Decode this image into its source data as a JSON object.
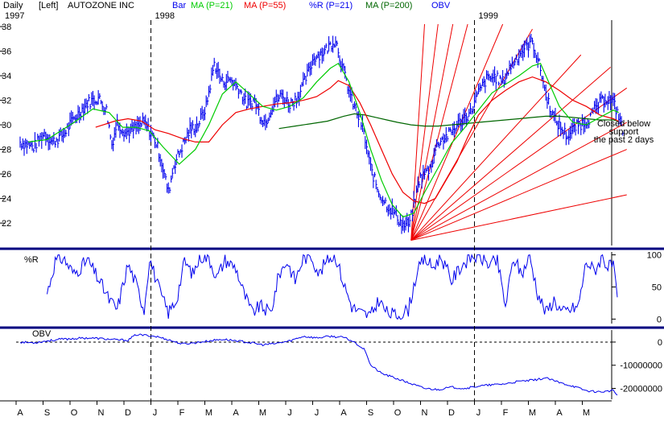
{
  "header": {
    "period": "Daily",
    "scale": "[Left]",
    "symbol": "AUTOZONE INC",
    "legend": [
      {
        "label": "Bar",
        "color": "#0000ee"
      },
      {
        "label": "MA (P=21)",
        "color": "#00cc00"
      },
      {
        "label": "MA (P=55)",
        "color": "#ee0000"
      },
      {
        "label": "%R (P=21)",
        "color": "#0000ee"
      },
      {
        "label": "MA (P=200)",
        "color": "#006600"
      },
      {
        "label": "OBV",
        "color": "#0000ee"
      }
    ]
  },
  "year_labels": [
    {
      "label": "1997",
      "month_index": 0
    },
    {
      "label": "1998",
      "month_index": 5
    },
    {
      "label": "1999",
      "month_index": 17
    }
  ],
  "annotation": {
    "lines": [
      "Closed below",
      "support",
      "the past 2 days"
    ]
  },
  "colors": {
    "bars": "#0000ee",
    "ma21": "#00cc00",
    "ma55": "#ee0000",
    "ma200": "#006600",
    "fan": "#ee0000",
    "panel_border": "#000080",
    "text": "#000000"
  },
  "chart_data": [
    {
      "panel": "price",
      "type": "bar",
      "y_ticks": [
        22,
        24,
        26,
        28,
        30,
        32,
        34,
        36,
        38
      ],
      "ylim": [
        20.5,
        38.2
      ],
      "x_month_labels": [
        "A",
        "S",
        "O",
        "N",
        "D",
        "J",
        "F",
        "M",
        "A",
        "M",
        "J",
        "J",
        "A",
        "S",
        "O",
        "N",
        "D",
        "J",
        "F",
        "M",
        "A",
        "M"
      ],
      "price_path": [
        [
          0,
          28.6
        ],
        [
          0.5,
          28.2
        ],
        [
          0.9,
          29.3
        ],
        [
          1.2,
          28.6
        ],
        [
          1.6,
          29.2
        ],
        [
          2.0,
          30.5
        ],
        [
          2.5,
          31.8
        ],
        [
          2.9,
          32.2
        ],
        [
          3.2,
          31.2
        ],
        [
          3.4,
          28.4
        ],
        [
          3.6,
          30.2
        ],
        [
          3.9,
          29.4
        ],
        [
          4.2,
          29.6
        ],
        [
          4.6,
          30.2
        ],
        [
          5.0,
          28.8
        ],
        [
          5.2,
          27.4
        ],
        [
          5.5,
          24.5
        ],
        [
          5.7,
          26.7
        ],
        [
          6.0,
          28.2
        ],
        [
          6.3,
          29.6
        ],
        [
          6.6,
          30.0
        ],
        [
          6.9,
          31.5
        ],
        [
          7.2,
          35.0
        ],
        [
          7.5,
          33.5
        ],
        [
          7.8,
          33.7
        ],
        [
          8.1,
          33.0
        ],
        [
          8.4,
          31.7
        ],
        [
          8.7,
          32.0
        ],
        [
          8.9,
          30.8
        ],
        [
          9.1,
          30.2
        ],
        [
          9.4,
          31.8
        ],
        [
          9.7,
          32.4
        ],
        [
          10.0,
          31.7
        ],
        [
          10.3,
          32.3
        ],
        [
          10.6,
          33.8
        ],
        [
          10.9,
          35.5
        ],
        [
          11.3,
          36.0
        ],
        [
          11.7,
          37.0
        ],
        [
          11.95,
          34.7
        ],
        [
          12.3,
          32.0
        ],
        [
          12.7,
          29.8
        ],
        [
          13.0,
          26.5
        ],
        [
          13.3,
          24.5
        ],
        [
          13.6,
          23.5
        ],
        [
          13.9,
          22.8
        ],
        [
          14.2,
          21.8
        ],
        [
          14.45,
          22.0
        ],
        [
          14.8,
          25.5
        ],
        [
          15.2,
          26.5
        ],
        [
          15.5,
          28.6
        ],
        [
          15.9,
          29.2
        ],
        [
          16.3,
          30.2
        ],
        [
          16.7,
          31.0
        ],
        [
          17.0,
          32.6
        ],
        [
          17.3,
          33.7
        ],
        [
          17.6,
          33.9
        ],
        [
          17.9,
          33.5
        ],
        [
          18.2,
          34.8
        ],
        [
          18.6,
          36.0
        ],
        [
          19.0,
          36.8
        ],
        [
          19.3,
          34.5
        ],
        [
          19.5,
          32.5
        ],
        [
          19.8,
          30.5
        ],
        [
          20.1,
          29.6
        ],
        [
          20.3,
          29.1
        ],
        [
          20.6,
          29.8
        ],
        [
          20.9,
          30.2
        ],
        [
          21.1,
          30.5
        ],
        [
          21.4,
          31.5
        ],
        [
          21.7,
          32.2
        ],
        [
          22.0,
          31.8
        ],
        [
          22.25,
          30.5
        ],
        [
          22.4,
          28.9
        ]
      ],
      "ma21_path": [
        [
          0.3,
          28.6
        ],
        [
          1.0,
          28.8
        ],
        [
          2.0,
          30.2
        ],
        [
          2.7,
          31.3
        ],
        [
          3.3,
          31.0
        ],
        [
          3.8,
          29.8
        ],
        [
          4.3,
          29.8
        ],
        [
          4.8,
          29.5
        ],
        [
          5.3,
          28.2
        ],
        [
          5.9,
          26.8
        ],
        [
          6.5,
          28.0
        ],
        [
          7.0,
          30.0
        ],
        [
          7.5,
          32.5
        ],
        [
          8.0,
          33.5
        ],
        [
          8.5,
          32.5
        ],
        [
          9.0,
          31.5
        ],
        [
          9.5,
          31.2
        ],
        [
          10.0,
          31.5
        ],
        [
          10.5,
          32.2
        ],
        [
          11.0,
          33.5
        ],
        [
          11.5,
          34.6
        ],
        [
          11.8,
          35.0
        ],
        [
          12.2,
          33.5
        ],
        [
          12.6,
          31.0
        ],
        [
          13.0,
          28.0
        ],
        [
          13.4,
          25.5
        ],
        [
          13.8,
          23.5
        ],
        [
          14.2,
          22.5
        ],
        [
          14.6,
          22.8
        ],
        [
          15.0,
          24.5
        ],
        [
          15.5,
          26.5
        ],
        [
          16.0,
          28.5
        ],
        [
          16.5,
          29.8
        ],
        [
          17.0,
          31.2
        ],
        [
          17.5,
          32.6
        ],
        [
          18.0,
          33.3
        ],
        [
          18.5,
          34.0
        ],
        [
          19.0,
          34.8
        ],
        [
          19.3,
          35.0
        ],
        [
          19.7,
          33.0
        ],
        [
          20.0,
          31.5
        ],
        [
          20.5,
          30.2
        ],
        [
          21.0,
          30.0
        ],
        [
          21.5,
          30.6
        ],
        [
          22.0,
          31.2
        ],
        [
          22.2,
          31.0
        ]
      ],
      "ma55_path": [
        [
          2.8,
          29.8
        ],
        [
          3.5,
          30.3
        ],
        [
          4.0,
          30.5
        ],
        [
          4.5,
          30.3
        ],
        [
          5.0,
          29.6
        ],
        [
          5.5,
          29.3
        ],
        [
          6.0,
          28.9
        ],
        [
          6.5,
          28.6
        ],
        [
          7.0,
          28.6
        ],
        [
          7.5,
          30.0
        ],
        [
          8.0,
          31.0
        ],
        [
          8.5,
          31.3
        ],
        [
          9.0,
          31.5
        ],
        [
          9.5,
          31.7
        ],
        [
          10.0,
          31.8
        ],
        [
          10.5,
          32.0
        ],
        [
          11.0,
          32.3
        ],
        [
          11.5,
          33.0
        ],
        [
          11.8,
          33.6
        ],
        [
          12.2,
          33.2
        ],
        [
          12.6,
          31.8
        ],
        [
          13.0,
          30.0
        ],
        [
          13.4,
          28.0
        ],
        [
          13.8,
          26.0
        ],
        [
          14.2,
          24.5
        ],
        [
          14.6,
          23.8
        ],
        [
          15.0,
          23.6
        ],
        [
          15.4,
          24.0
        ],
        [
          15.8,
          25.5
        ],
        [
          16.2,
          27.0
        ],
        [
          16.6,
          29.0
        ],
        [
          17.0,
          30.8
        ],
        [
          17.5,
          32.0
        ],
        [
          18.0,
          32.8
        ],
        [
          18.5,
          33.5
        ],
        [
          19.0,
          33.9
        ],
        [
          19.5,
          33.5
        ],
        [
          20.0,
          32.8
        ],
        [
          20.5,
          32.0
        ],
        [
          21.0,
          31.5
        ],
        [
          21.5,
          30.8
        ],
        [
          22.0,
          30.5
        ],
        [
          22.2,
          30.3
        ]
      ],
      "ma200_path": [
        [
          9.6,
          29.7
        ],
        [
          10.2,
          29.9
        ],
        [
          10.8,
          30.1
        ],
        [
          11.4,
          30.3
        ],
        [
          12.0,
          30.7
        ],
        [
          12.4,
          30.9
        ],
        [
          12.8,
          30.8
        ],
        [
          13.2,
          30.6
        ],
        [
          13.6,
          30.4
        ],
        [
          14.0,
          30.2
        ],
        [
          14.5,
          30.0
        ],
        [
          15.0,
          29.9
        ],
        [
          15.5,
          29.9
        ],
        [
          16.0,
          30.0
        ],
        [
          16.5,
          30.1
        ],
        [
          17.0,
          30.2
        ],
        [
          17.5,
          30.3
        ],
        [
          18.0,
          30.4
        ],
        [
          18.5,
          30.5
        ],
        [
          19.0,
          30.6
        ],
        [
          19.5,
          30.7
        ],
        [
          20.0,
          30.7
        ],
        [
          20.5,
          30.6
        ],
        [
          21.0,
          30.5
        ],
        [
          21.5,
          30.4
        ],
        [
          22.0,
          30.4
        ],
        [
          22.2,
          30.3
        ]
      ],
      "fan_origin": [
        14.5,
        20.6
      ],
      "fan_targets": [
        [
          15.0,
          38.2
        ],
        [
          15.5,
          38.2
        ],
        [
          16.05,
          38.2
        ],
        [
          16.6,
          38.2
        ],
        [
          17.9,
          38.2
        ],
        [
          19.0,
          37.8
        ],
        [
          20.8,
          35.7
        ],
        [
          21.9,
          34.7
        ],
        [
          22.5,
          33.0
        ],
        [
          22.5,
          30.2
        ],
        [
          22.5,
          28.0
        ],
        [
          22.5,
          24.3
        ]
      ]
    },
    {
      "panel": "williams_r",
      "type": "line",
      "title": "%R",
      "y_ticks": [
        0,
        50,
        100
      ],
      "ylim": [
        -2,
        102
      ],
      "path": [
        [
          1.0,
          40
        ],
        [
          1.3,
          90
        ],
        [
          1.6,
          95
        ],
        [
          2.0,
          70
        ],
        [
          2.5,
          92
        ],
        [
          3.0,
          55
        ],
        [
          3.3,
          30
        ],
        [
          3.6,
          15
        ],
        [
          4.0,
          85
        ],
        [
          4.3,
          55
        ],
        [
          4.6,
          15
        ],
        [
          4.8,
          95
        ],
        [
          5.2,
          40
        ],
        [
          5.5,
          10
        ],
        [
          5.8,
          30
        ],
        [
          6.1,
          90
        ],
        [
          6.4,
          70
        ],
        [
          6.7,
          98
        ],
        [
          7.0,
          95
        ],
        [
          7.3,
          65
        ],
        [
          7.6,
          92
        ],
        [
          8.0,
          80
        ],
        [
          8.3,
          40
        ],
        [
          8.6,
          10
        ],
        [
          8.9,
          20
        ],
        [
          9.3,
          10
        ],
        [
          9.6,
          70
        ],
        [
          9.9,
          90
        ],
        [
          10.2,
          60
        ],
        [
          10.5,
          95
        ],
        [
          10.8,
          98
        ],
        [
          11.1,
          70
        ],
        [
          11.4,
          95
        ],
        [
          11.7,
          98
        ],
        [
          12.0,
          55
        ],
        [
          12.3,
          20
        ],
        [
          12.6,
          10
        ],
        [
          13.0,
          5
        ],
        [
          13.3,
          30
        ],
        [
          13.6,
          10
        ],
        [
          14.0,
          5
        ],
        [
          14.4,
          15
        ],
        [
          14.7,
          70
        ],
        [
          15.0,
          95
        ],
        [
          15.3,
          80
        ],
        [
          15.6,
          98
        ],
        [
          16.0,
          60
        ],
        [
          16.4,
          85
        ],
        [
          16.8,
          98
        ],
        [
          17.1,
          95
        ],
        [
          17.4,
          85
        ],
        [
          17.7,
          90
        ],
        [
          18.0,
          20
        ],
        [
          18.3,
          95
        ],
        [
          18.6,
          70
        ],
        [
          18.9,
          98
        ],
        [
          19.2,
          40
        ],
        [
          19.5,
          10
        ],
        [
          19.8,
          30
        ],
        [
          20.1,
          10
        ],
        [
          20.4,
          15
        ],
        [
          20.7,
          20
        ],
        [
          21.0,
          90
        ],
        [
          21.3,
          75
        ],
        [
          21.6,
          98
        ],
        [
          21.8,
          80
        ],
        [
          22.0,
          85
        ],
        [
          22.2,
          5
        ]
      ]
    },
    {
      "panel": "obv",
      "type": "line",
      "title": "OBV",
      "y_ticks": [
        0,
        -10000000,
        -20000000
      ],
      "y_tick_labels": [
        "0",
        "-10000000",
        "-20000000"
      ],
      "ylim": [
        -24000000,
        4500000
      ],
      "path": [
        [
          0,
          0
        ],
        [
          0.5,
          -300000
        ],
        [
          1.0,
          500000
        ],
        [
          1.5,
          1200000
        ],
        [
          2.0,
          1500000
        ],
        [
          2.5,
          1800000
        ],
        [
          3.0,
          1500000
        ],
        [
          3.5,
          1000000
        ],
        [
          4.0,
          800000
        ],
        [
          4.3,
          3200000
        ],
        [
          4.8,
          2800000
        ],
        [
          5.1,
          2300000
        ],
        [
          5.5,
          1000000
        ],
        [
          6.0,
          -800000
        ],
        [
          6.5,
          -300000
        ],
        [
          7.0,
          500000
        ],
        [
          7.5,
          1200000
        ],
        [
          8.0,
          600000
        ],
        [
          8.5,
          -200000
        ],
        [
          9.0,
          -1200000
        ],
        [
          9.5,
          -600000
        ],
        [
          10.0,
          500000
        ],
        [
          10.5,
          2500000
        ],
        [
          11.0,
          1800000
        ],
        [
          11.5,
          2500000
        ],
        [
          12.0,
          2000000
        ],
        [
          12.4,
          0
        ],
        [
          12.8,
          -3500000
        ],
        [
          13.0,
          -10000000
        ],
        [
          13.4,
          -13500000
        ],
        [
          13.9,
          -15500000
        ],
        [
          14.5,
          -18000000
        ],
        [
          15.0,
          -20000000
        ],
        [
          15.5,
          -20500000
        ],
        [
          16.0,
          -19500000
        ],
        [
          16.5,
          -20000000
        ],
        [
          17.0,
          -19000000
        ],
        [
          17.5,
          -18500000
        ],
        [
          18.0,
          -18000000
        ],
        [
          18.5,
          -17000000
        ],
        [
          19.0,
          -16500000
        ],
        [
          19.5,
          -15500000
        ],
        [
          20.0,
          -17500000
        ],
        [
          20.5,
          -19000000
        ],
        [
          21.0,
          -21000000
        ],
        [
          21.5,
          -21500000
        ],
        [
          22.0,
          -21000000
        ],
        [
          22.2,
          -23500000
        ]
      ]
    }
  ]
}
